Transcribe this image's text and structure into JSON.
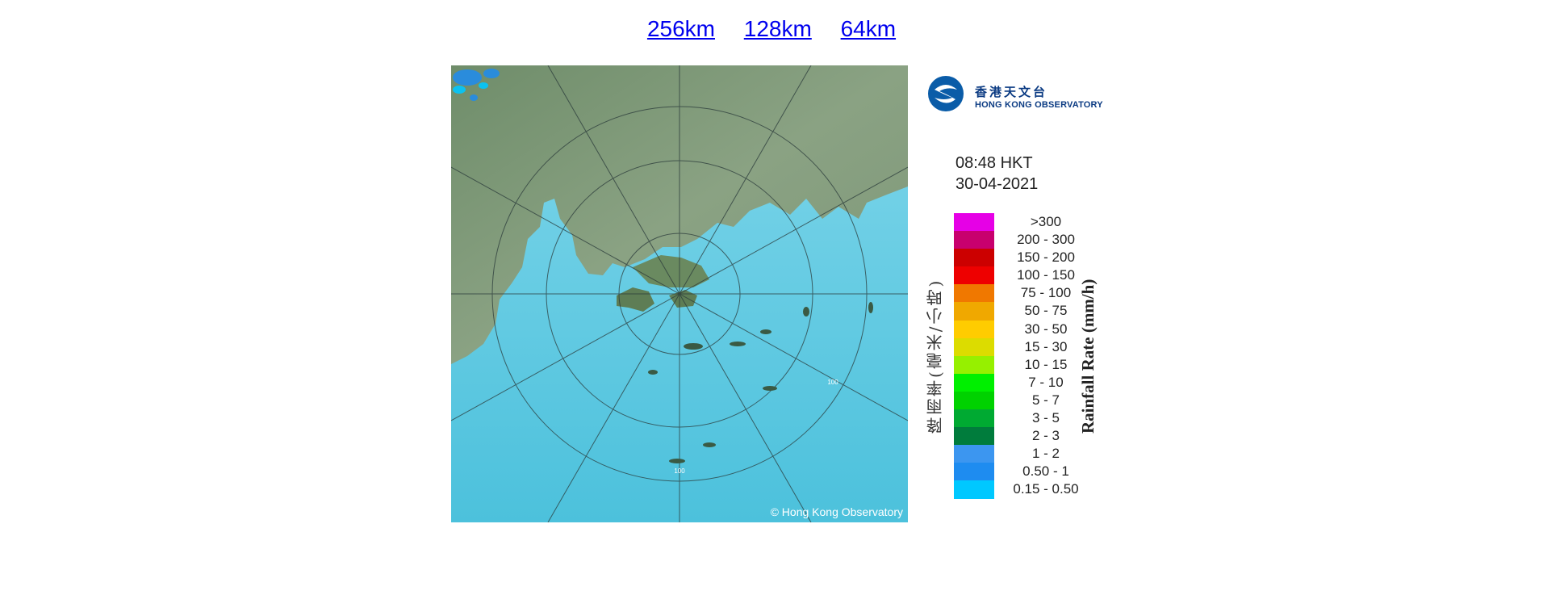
{
  "range_links": [
    {
      "label": "256km"
    },
    {
      "label": "128km"
    },
    {
      "label": "64km"
    }
  ],
  "radar": {
    "copyright": "© Hong Kong Observatory",
    "ring_label": "100"
  },
  "legend": {
    "logo": {
      "name_cn": "香港天文台",
      "name_en": "HONG KONG OBSERVATORY"
    },
    "time": "08:48 HKT",
    "date": "30-04-2021",
    "axis_label_cn": "降雨率(毫米/小時)",
    "axis_label_en": "Rainfall Rate (mm/h)",
    "scale": [
      {
        "label": ">300",
        "color": "#e600e6"
      },
      {
        "label": "200 - 300",
        "color": "#c8006e"
      },
      {
        "label": "150 - 200",
        "color": "#cc0000"
      },
      {
        "label": "100 - 150",
        "color": "#ee0000"
      },
      {
        "label": "75 - 100",
        "color": "#f07800"
      },
      {
        "label": "50 - 75",
        "color": "#f0a800"
      },
      {
        "label": "30 - 50",
        "color": "#ffcc00"
      },
      {
        "label": "15 - 30",
        "color": "#dcdc00"
      },
      {
        "label": "10 - 15",
        "color": "#96f000"
      },
      {
        "label": "7 - 10",
        "color": "#00f000"
      },
      {
        "label": "5 - 7",
        "color": "#00d200"
      },
      {
        "label": "3 - 5",
        "color": "#00aa32"
      },
      {
        "label": "2 - 3",
        "color": "#007c3c"
      },
      {
        "label": "1 - 2",
        "color": "#3c96f0"
      },
      {
        "label": "0.50 - 1",
        "color": "#1e8cf0"
      },
      {
        "label": "0.15 - 0.50",
        "color": "#00c8ff"
      }
    ]
  }
}
